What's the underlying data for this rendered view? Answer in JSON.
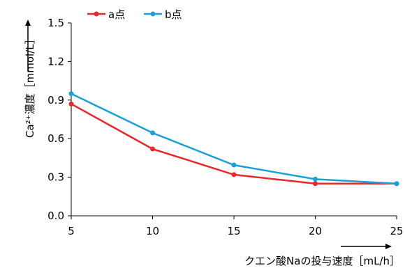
{
  "chart_data": {
    "type": "line",
    "xlabel": "クエン酸Naの投与速度［mL/h］",
    "ylabel": "Ca²⁺濃度［mmol/L］",
    "x": [
      5,
      10,
      15,
      20,
      25
    ],
    "xticks": [
      "5",
      "10",
      "15",
      "20",
      "25"
    ],
    "yticks": [
      "0.0",
      "0.3",
      "0.6",
      "0.9",
      "1.2",
      "1.5"
    ],
    "xlim": [
      5,
      25
    ],
    "ylim": [
      0,
      1.5
    ],
    "grid": false,
    "legend_position": "top-left",
    "series": [
      {
        "name": "a点",
        "color": "#e8282b",
        "values": [
          0.87,
          0.52,
          0.32,
          0.25,
          0.25
        ]
      },
      {
        "name": "b点",
        "color": "#1aa0d8",
        "values": [
          0.95,
          0.645,
          0.395,
          0.285,
          0.25
        ]
      }
    ]
  }
}
